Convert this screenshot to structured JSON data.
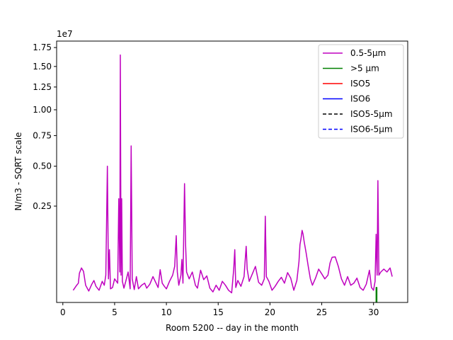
{
  "chart_data": {
    "type": "line",
    "xlabel": "Room 5200 -- day in the month",
    "ylabel": "N/m3 - SQRT scale",
    "y_scale": "sqrt",
    "y_offset_label": "1e7",
    "xlim": [
      -0.6,
      33.3
    ],
    "ylim": [
      0,
      18400000
    ],
    "xticks": [
      {
        "value": 0,
        "label": "0"
      },
      {
        "value": 5,
        "label": "5"
      },
      {
        "value": 10,
        "label": "10"
      },
      {
        "value": 15,
        "label": "15"
      },
      {
        "value": 20,
        "label": "20"
      },
      {
        "value": 25,
        "label": "25"
      },
      {
        "value": 30,
        "label": "30"
      }
    ],
    "yticks": [
      {
        "value": 2500000,
        "label": "0.25"
      },
      {
        "value": 5000000,
        "label": "0.50"
      },
      {
        "value": 7500000,
        "label": "0.75"
      },
      {
        "value": 10000000,
        "label": "1.00"
      },
      {
        "value": 12500000,
        "label": "1.25"
      },
      {
        "value": 15000000,
        "label": "1.50"
      },
      {
        "value": 17500000,
        "label": "1.75"
      }
    ],
    "legend_position": "top-right",
    "series": [
      {
        "name": "0.5-5µm",
        "color": "#bf00bf",
        "dash": "solid",
        "points": [
          [
            1.0,
            40000
          ],
          [
            1.3,
            75000
          ],
          [
            1.5,
            100000
          ],
          [
            1.6,
            230000
          ],
          [
            1.8,
            320000
          ],
          [
            2.0,
            260000
          ],
          [
            2.2,
            80000
          ],
          [
            2.5,
            35000
          ],
          [
            2.8,
            90000
          ],
          [
            3.0,
            130000
          ],
          [
            3.2,
            70000
          ],
          [
            3.5,
            40000
          ],
          [
            3.8,
            120000
          ],
          [
            4.0,
            80000
          ],
          [
            4.15,
            200000
          ],
          [
            4.3,
            5000000
          ],
          [
            4.4,
            150000
          ],
          [
            4.5,
            750000
          ],
          [
            4.6,
            50000
          ],
          [
            4.8,
            60000
          ],
          [
            5.0,
            150000
          ],
          [
            5.3,
            100000
          ],
          [
            5.4,
            2900000
          ],
          [
            5.5,
            250000
          ],
          [
            5.55,
            16500000
          ],
          [
            5.62,
            200000
          ],
          [
            5.68,
            2900000
          ],
          [
            5.75,
            120000
          ],
          [
            5.9,
            55000
          ],
          [
            6.1,
            130000
          ],
          [
            6.3,
            250000
          ],
          [
            6.5,
            50000
          ],
          [
            6.6,
            6600000
          ],
          [
            6.7,
            150000
          ],
          [
            6.9,
            45000
          ],
          [
            7.1,
            180000
          ],
          [
            7.3,
            50000
          ],
          [
            7.6,
            80000
          ],
          [
            7.9,
            100000
          ],
          [
            8.1,
            55000
          ],
          [
            8.4,
            90000
          ],
          [
            8.7,
            180000
          ],
          [
            9.0,
            100000
          ],
          [
            9.2,
            60000
          ],
          [
            9.4,
            290000
          ],
          [
            9.6,
            100000
          ],
          [
            9.8,
            70000
          ],
          [
            10.0,
            50000
          ],
          [
            10.3,
            120000
          ],
          [
            10.6,
            200000
          ],
          [
            10.8,
            350000
          ],
          [
            10.95,
            1200000
          ],
          [
            11.05,
            250000
          ],
          [
            11.2,
            80000
          ],
          [
            11.4,
            200000
          ],
          [
            11.5,
            500000
          ],
          [
            11.6,
            100000
          ],
          [
            11.75,
            3800000
          ],
          [
            11.85,
            900000
          ],
          [
            11.95,
            250000
          ],
          [
            12.2,
            150000
          ],
          [
            12.5,
            250000
          ],
          [
            12.8,
            80000
          ],
          [
            13.0,
            55000
          ],
          [
            13.3,
            280000
          ],
          [
            13.6,
            140000
          ],
          [
            13.9,
            190000
          ],
          [
            14.2,
            55000
          ],
          [
            14.5,
            30000
          ],
          [
            14.8,
            80000
          ],
          [
            15.1,
            40000
          ],
          [
            15.4,
            120000
          ],
          [
            15.7,
            80000
          ],
          [
            16.0,
            40000
          ],
          [
            16.3,
            25000
          ],
          [
            16.5,
            300000
          ],
          [
            16.6,
            750000
          ],
          [
            16.7,
            60000
          ],
          [
            16.9,
            130000
          ],
          [
            17.2,
            70000
          ],
          [
            17.5,
            180000
          ],
          [
            17.7,
            850000
          ],
          [
            17.8,
            300000
          ],
          [
            18.0,
            120000
          ],
          [
            18.3,
            220000
          ],
          [
            18.6,
            350000
          ],
          [
            18.9,
            110000
          ],
          [
            19.2,
            80000
          ],
          [
            19.45,
            150000
          ],
          [
            19.55,
            2000000
          ],
          [
            19.65,
            180000
          ],
          [
            19.9,
            120000
          ],
          [
            20.2,
            40000
          ],
          [
            20.5,
            70000
          ],
          [
            20.8,
            120000
          ],
          [
            21.1,
            170000
          ],
          [
            21.4,
            100000
          ],
          [
            21.7,
            240000
          ],
          [
            22.0,
            160000
          ],
          [
            22.3,
            40000
          ],
          [
            22.6,
            130000
          ],
          [
            22.8,
            450000
          ],
          [
            22.9,
            900000
          ],
          [
            23.0,
            1100000
          ],
          [
            23.1,
            1400000
          ],
          [
            23.2,
            1250000
          ],
          [
            23.3,
            1000000
          ],
          [
            23.5,
            650000
          ],
          [
            23.7,
            350000
          ],
          [
            23.9,
            150000
          ],
          [
            24.1,
            80000
          ],
          [
            24.4,
            160000
          ],
          [
            24.7,
            300000
          ],
          [
            25.0,
            220000
          ],
          [
            25.3,
            150000
          ],
          [
            25.6,
            200000
          ],
          [
            25.8,
            420000
          ],
          [
            26.0,
            550000
          ],
          [
            26.3,
            560000
          ],
          [
            26.6,
            350000
          ],
          [
            26.9,
            150000
          ],
          [
            27.2,
            80000
          ],
          [
            27.5,
            180000
          ],
          [
            27.8,
            80000
          ],
          [
            28.1,
            100000
          ],
          [
            28.4,
            160000
          ],
          [
            28.7,
            60000
          ],
          [
            29.0,
            40000
          ],
          [
            29.3,
            90000
          ],
          [
            29.6,
            280000
          ],
          [
            29.8,
            60000
          ],
          [
            30.0,
            40000
          ],
          [
            30.15,
            120000
          ],
          [
            30.25,
            1250000
          ],
          [
            30.35,
            200000
          ],
          [
            30.42,
            4000000
          ],
          [
            30.52,
            200000
          ],
          [
            30.7,
            250000
          ],
          [
            31.0,
            300000
          ],
          [
            31.3,
            250000
          ],
          [
            31.6,
            320000
          ],
          [
            31.8,
            180000
          ]
        ]
      },
      {
        "name": ">5 µm",
        "color": "#008000",
        "dash": "solid",
        "points": [
          [
            30.25,
            0
          ],
          [
            30.25,
            60000
          ],
          [
            30.32,
            60000
          ],
          [
            30.32,
            0
          ]
        ]
      },
      {
        "name": "ISO5",
        "color": "#ff0000",
        "dash": "solid",
        "points": []
      },
      {
        "name": "ISO6",
        "color": "#0000ff",
        "dash": "solid",
        "points": []
      },
      {
        "name": "ISO5-5µm",
        "color": "#000000",
        "dash": "dashed",
        "points": []
      },
      {
        "name": "ISO6-5µm",
        "color": "#0000ff",
        "dash": "dashed",
        "points": []
      }
    ]
  }
}
